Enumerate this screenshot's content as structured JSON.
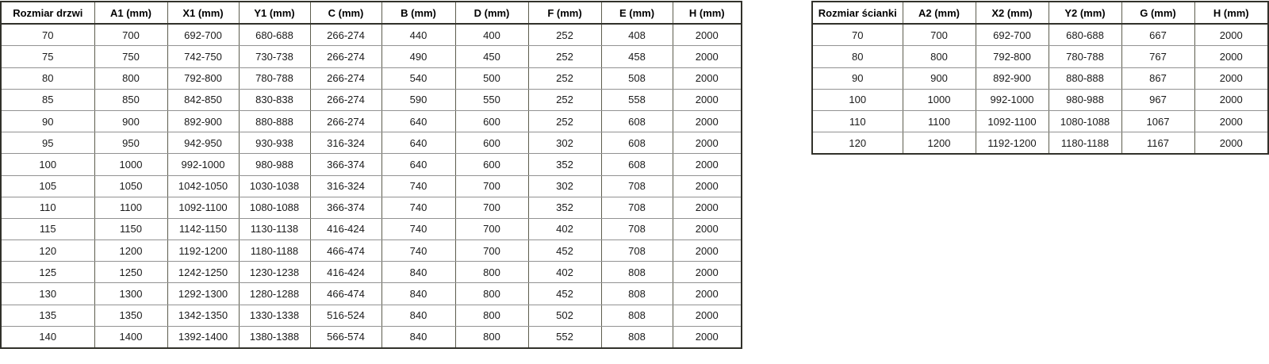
{
  "left_table": {
    "title": "door-size-table",
    "headers": [
      "Rozmiar drzwi",
      "A1 (mm)",
      "X1 (mm)",
      "Y1 (mm)",
      "C (mm)",
      "B (mm)",
      "D (mm)",
      "F (mm)",
      "E (mm)",
      "H (mm)"
    ],
    "rows": [
      [
        "70",
        "700",
        "692-700",
        "680-688",
        "266-274",
        "440",
        "400",
        "252",
        "408",
        "2000"
      ],
      [
        "75",
        "750",
        "742-750",
        "730-738",
        "266-274",
        "490",
        "450",
        "252",
        "458",
        "2000"
      ],
      [
        "80",
        "800",
        "792-800",
        "780-788",
        "266-274",
        "540",
        "500",
        "252",
        "508",
        "2000"
      ],
      [
        "85",
        "850",
        "842-850",
        "830-838",
        "266-274",
        "590",
        "550",
        "252",
        "558",
        "2000"
      ],
      [
        "90",
        "900",
        "892-900",
        "880-888",
        "266-274",
        "640",
        "600",
        "252",
        "608",
        "2000"
      ],
      [
        "95",
        "950",
        "942-950",
        "930-938",
        "316-324",
        "640",
        "600",
        "302",
        "608",
        "2000"
      ],
      [
        "100",
        "1000",
        "992-1000",
        "980-988",
        "366-374",
        "640",
        "600",
        "352",
        "608",
        "2000"
      ],
      [
        "105",
        "1050",
        "1042-1050",
        "1030-1038",
        "316-324",
        "740",
        "700",
        "302",
        "708",
        "2000"
      ],
      [
        "110",
        "1100",
        "1092-1100",
        "1080-1088",
        "366-374",
        "740",
        "700",
        "352",
        "708",
        "2000"
      ],
      [
        "115",
        "1150",
        "1142-1150",
        "1130-1138",
        "416-424",
        "740",
        "700",
        "402",
        "708",
        "2000"
      ],
      [
        "120",
        "1200",
        "1192-1200",
        "1180-1188",
        "466-474",
        "740",
        "700",
        "452",
        "708",
        "2000"
      ],
      [
        "125",
        "1250",
        "1242-1250",
        "1230-1238",
        "416-424",
        "840",
        "800",
        "402",
        "808",
        "2000"
      ],
      [
        "130",
        "1300",
        "1292-1300",
        "1280-1288",
        "466-474",
        "840",
        "800",
        "452",
        "808",
        "2000"
      ],
      [
        "135",
        "1350",
        "1342-1350",
        "1330-1338",
        "516-524",
        "840",
        "800",
        "502",
        "808",
        "2000"
      ],
      [
        "140",
        "1400",
        "1392-1400",
        "1380-1388",
        "566-574",
        "840",
        "800",
        "552",
        "808",
        "2000"
      ]
    ]
  },
  "right_table": {
    "title": "wall-size-table",
    "headers": [
      "Rozmiar ścianki",
      "A2 (mm)",
      "X2 (mm)",
      "Y2 (mm)",
      "G (mm)",
      "H (mm)"
    ],
    "rows": [
      [
        "70",
        "700",
        "692-700",
        "680-688",
        "667",
        "2000"
      ],
      [
        "80",
        "800",
        "792-800",
        "780-788",
        "767",
        "2000"
      ],
      [
        "90",
        "900",
        "892-900",
        "880-888",
        "867",
        "2000"
      ],
      [
        "100",
        "1000",
        "992-1000",
        "980-988",
        "967",
        "2000"
      ],
      [
        "110",
        "1100",
        "1092-1100",
        "1080-1088",
        "1067",
        "2000"
      ],
      [
        "120",
        "1200",
        "1192-1200",
        "1180-1188",
        "1167",
        "2000"
      ]
    ]
  },
  "colors": {
    "background": "#ffffff",
    "border_outer": "#31312a",
    "border_vertical": "#5d5d4e",
    "border_horizontal": "#929292",
    "text": "#1a1a1a"
  }
}
